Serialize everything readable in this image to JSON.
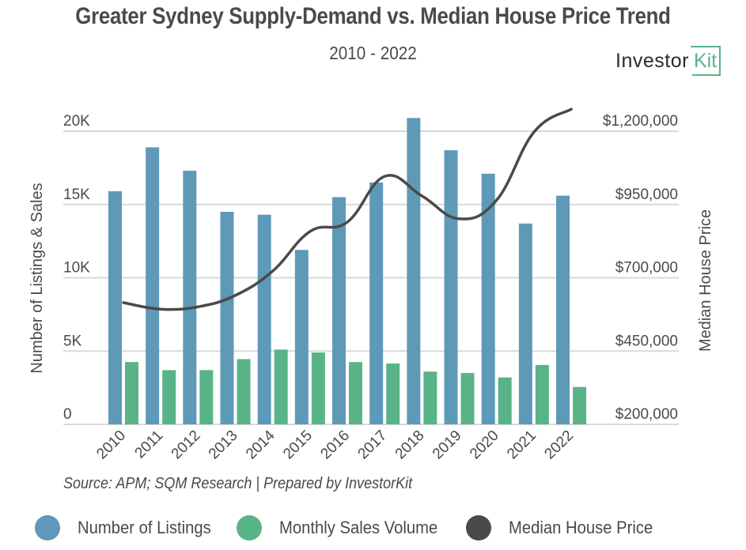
{
  "header": {
    "title": "Greater Sydney Supply-Demand vs. Median House Price Trend",
    "subtitle": "2010 - 2022"
  },
  "logo": {
    "main": "Investor",
    "accent": "Kit",
    "accent_color": "#58b487"
  },
  "source": "Source: APM; SQM Research | Prepared by InvestorKit",
  "chart_data": {
    "type": "bar",
    "title": "Greater Sydney Supply-Demand vs. Median House Price Trend",
    "subtitle": "2010 - 2022",
    "categories": [
      "2010",
      "2011",
      "2012",
      "2013",
      "2014",
      "2015",
      "2016",
      "2017",
      "2018",
      "2019",
      "2020",
      "2021",
      "2022"
    ],
    "series": [
      {
        "name": "Number of Listings",
        "type": "bar",
        "axis": "left",
        "color": "#5f99b8",
        "values": [
          15900,
          18900,
          17300,
          14500,
          14300,
          11900,
          15500,
          16500,
          20900,
          18700,
          17100,
          13700,
          15600
        ]
      },
      {
        "name": "Monthly Sales Volume",
        "type": "bar",
        "axis": "left",
        "color": "#58b487",
        "values": [
          4250,
          3700,
          3700,
          4450,
          5100,
          4900,
          4250,
          4150,
          3600,
          3500,
          3200,
          4050,
          2550
        ]
      },
      {
        "name": "Median House Price",
        "type": "line",
        "axis": "right",
        "color": "#4a4a4a",
        "smooth": true,
        "values": [
          615000,
          593000,
          601000,
          640000,
          723000,
          858000,
          890000,
          1046000,
          979000,
          901000,
          965000,
          1197000,
          1275000
        ]
      }
    ],
    "ylabel": "Number of Listings & Sales",
    "ylim": [
      0,
      20000
    ],
    "yticks": [
      0,
      5000,
      10000,
      15000,
      20000
    ],
    "ytick_labels": [
      "0",
      "5K",
      "10K",
      "15K",
      "20K"
    ],
    "y2label": "Median House Price",
    "y2lim": [
      200000,
      1200000
    ],
    "y2ticks": [
      200000,
      450000,
      700000,
      950000,
      1200000
    ],
    "y2tick_labels": [
      "$200,000",
      "$450,000",
      "$700,000",
      "$950,000",
      "$1,200,000"
    ],
    "xlabel": "",
    "grid": true,
    "legend": "bottom"
  },
  "legend": [
    {
      "label": "Number of Listings",
      "color": "#5f99b8"
    },
    {
      "label": "Monthly Sales Volume",
      "color": "#58b487"
    },
    {
      "label": "Median House Price",
      "color": "#4a4a4a"
    }
  ]
}
